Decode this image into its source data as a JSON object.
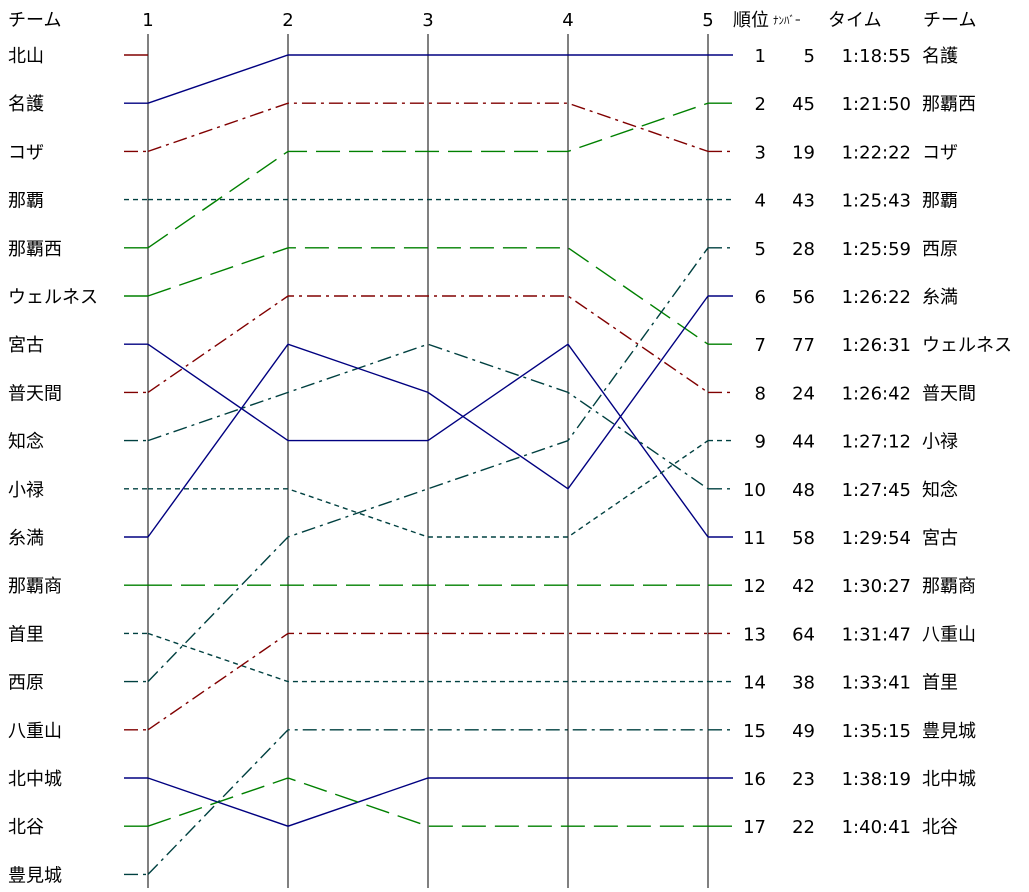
{
  "chart_data": {
    "type": "line",
    "legs": [
      "1",
      "2",
      "3",
      "4",
      "5"
    ],
    "headers": {
      "team_left": "チーム",
      "rank": "順位",
      "number": "ﾅﾝﾊﾞｰ",
      "time": "タイム",
      "team_right": "チーム"
    },
    "start_order": [
      "北山",
      "名護",
      "コザ",
      "那覇",
      "那覇西",
      "ウェルネス",
      "宮古",
      "普天間",
      "知念",
      "小禄",
      "糸満",
      "那覇商",
      "首里",
      "西原",
      "八重山",
      "北中城",
      "北谷",
      "豊見城"
    ],
    "series": [
      {
        "name": "北山",
        "ranks": [
          1
        ],
        "color": "#800000",
        "dash": "solid"
      },
      {
        "name": "名護",
        "ranks": [
          2,
          1,
          1,
          1,
          1
        ],
        "color": "#000080",
        "dash": "solid"
      },
      {
        "name": "コザ",
        "ranks": [
          3,
          2,
          2,
          2,
          3
        ],
        "color": "#800000",
        "dash": "dashdot"
      },
      {
        "name": "那覇",
        "ranks": [
          4,
          4,
          4,
          4,
          4
        ],
        "color": "#004040",
        "dash": "dot"
      },
      {
        "name": "那覇西",
        "ranks": [
          5,
          3,
          3,
          3,
          2
        ],
        "color": "#008000",
        "dash": "longdash"
      },
      {
        "name": "ウェルネス",
        "ranks": [
          6,
          5,
          5,
          5,
          7
        ],
        "color": "#008000",
        "dash": "longdash"
      },
      {
        "name": "宮古",
        "ranks": [
          7,
          9,
          9,
          7,
          11
        ],
        "color": "#000080",
        "dash": "solid"
      },
      {
        "name": "普天間",
        "ranks": [
          8,
          6,
          6,
          6,
          8
        ],
        "color": "#800000",
        "dash": "dashdot"
      },
      {
        "name": "知念",
        "ranks": [
          9,
          8,
          7,
          8,
          10
        ],
        "color": "#004040",
        "dash": "dashdot"
      },
      {
        "name": "小禄",
        "ranks": [
          10,
          10,
          11,
          11,
          9
        ],
        "color": "#004040",
        "dash": "dot"
      },
      {
        "name": "糸満",
        "ranks": [
          11,
          7,
          8,
          10,
          6
        ],
        "color": "#000080",
        "dash": "solid"
      },
      {
        "name": "那覇商",
        "ranks": [
          12,
          12,
          12,
          12,
          12
        ],
        "color": "#008000",
        "dash": "longdash"
      },
      {
        "name": "首里",
        "ranks": [
          13,
          14,
          14,
          14,
          14
        ],
        "color": "#004040",
        "dash": "dot"
      },
      {
        "name": "西原",
        "ranks": [
          14,
          11,
          10,
          9,
          5
        ],
        "color": "#004040",
        "dash": "dashdot"
      },
      {
        "name": "八重山",
        "ranks": [
          15,
          13,
          13,
          13,
          13
        ],
        "color": "#800000",
        "dash": "dashdot"
      },
      {
        "name": "北中城",
        "ranks": [
          16,
          17,
          16,
          16,
          16
        ],
        "color": "#000080",
        "dash": "solid"
      },
      {
        "name": "北谷",
        "ranks": [
          17,
          16,
          17,
          17,
          17
        ],
        "color": "#008000",
        "dash": "longdash"
      },
      {
        "name": "豊見城",
        "ranks": [
          18,
          15,
          15,
          15,
          15
        ],
        "color": "#004040",
        "dash": "dashdot"
      }
    ],
    "results": [
      {
        "rank": "1",
        "number": "5",
        "time": "1:18:55",
        "team": "名護"
      },
      {
        "rank": "2",
        "number": "45",
        "time": "1:21:50",
        "team": "那覇西"
      },
      {
        "rank": "3",
        "number": "19",
        "time": "1:22:22",
        "team": "コザ"
      },
      {
        "rank": "4",
        "number": "43",
        "time": "1:25:43",
        "team": "那覇"
      },
      {
        "rank": "5",
        "number": "28",
        "time": "1:25:59",
        "team": "西原"
      },
      {
        "rank": "6",
        "number": "56",
        "time": "1:26:22",
        "team": "糸満"
      },
      {
        "rank": "7",
        "number": "77",
        "time": "1:26:31",
        "team": "ウェルネス"
      },
      {
        "rank": "8",
        "number": "24",
        "time": "1:26:42",
        "team": "普天間"
      },
      {
        "rank": "9",
        "number": "44",
        "time": "1:27:12",
        "team": "小禄"
      },
      {
        "rank": "10",
        "number": "48",
        "time": "1:27:45",
        "team": "知念"
      },
      {
        "rank": "11",
        "number": "58",
        "time": "1:29:54",
        "team": "宮古"
      },
      {
        "rank": "12",
        "number": "42",
        "time": "1:30:27",
        "team": "那覇商"
      },
      {
        "rank": "13",
        "number": "64",
        "time": "1:31:47",
        "team": "八重山"
      },
      {
        "rank": "14",
        "number": "38",
        "time": "1:33:41",
        "team": "首里"
      },
      {
        "rank": "15",
        "number": "49",
        "time": "1:35:15",
        "team": "豊見城"
      },
      {
        "rank": "16",
        "number": "23",
        "time": "1:38:19",
        "team": "北中城"
      },
      {
        "rank": "17",
        "number": "22",
        "time": "1:40:41",
        "team": "北谷"
      }
    ]
  }
}
